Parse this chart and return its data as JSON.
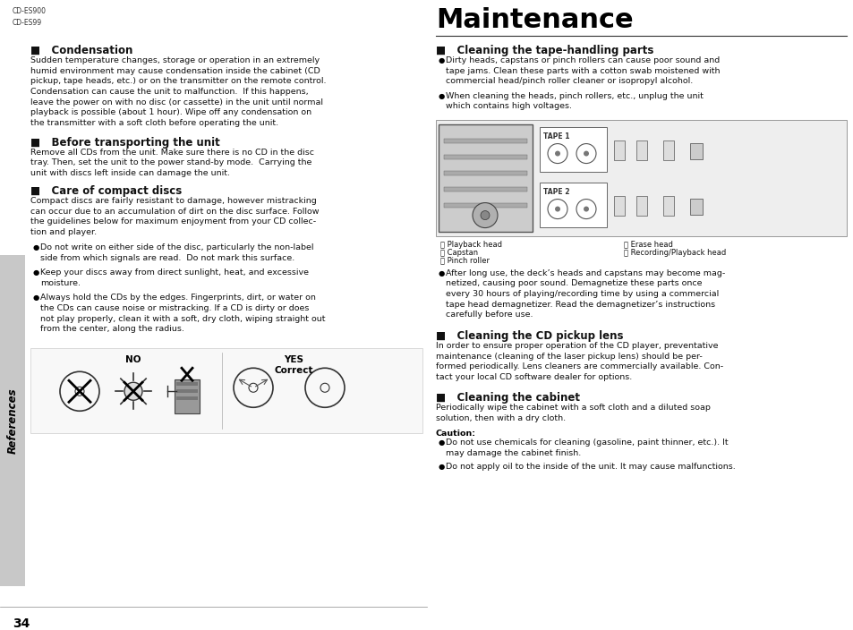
{
  "bg_color": "#ffffff",
  "model_text": "CD-ES900\nCD-ES99",
  "title": "Maintenance",
  "page_num": "34",
  "left_tab_text": "References",
  "cond_heading": "■   Condensation",
  "cond_body": "Sudden temperature changes, storage or operation in an extremely\nhumid environment may cause condensation inside the cabinet (CD\npickup, tape heads, etc.) or on the transmitter on the remote control.\nCondensation can cause the unit to malfunction.  If this happens,\nleave the power on with no disc (or cassette) in the unit until normal\nplayback is possible (about 1 hour). Wipe off any condensation on\nthe transmitter with a soft cloth before operating the unit.",
  "before_heading": "■   Before transporting the unit",
  "before_body": "Remove all CDs from the unit. Make sure there is no CD in the disc\ntray. Then, set the unit to the power stand-by mode.  Carrying the\nunit with discs left inside can damage the unit.",
  "care_heading": "■   Care of compact discs",
  "care_body": "Compact discs are fairly resistant to damage, however mistracking\ncan occur due to an accumulation of dirt on the disc surface. Follow\nthe guidelines below for maximum enjoyment from your CD collec-\ntion and player.",
  "care_bullets": [
    "Do not write on either side of the disc, particularly the non-label\nside from which signals are read.  Do not mark this surface.",
    "Keep your discs away from direct sunlight, heat, and excessive\nmoisture.",
    "Always hold the CDs by the edges. Fingerprints, dirt, or water on\nthe CDs can cause noise or mistracking. If a CD is dirty or does\nnot play properly, clean it with a soft, dry cloth, wiping straight out\nfrom the center, along the radius."
  ],
  "no_label": "NO",
  "yes_label": "YES\nCorrect",
  "tape_heading": "■   Cleaning the tape-handling parts",
  "tape_bullets": [
    "Dirty heads, capstans or pinch rollers can cause poor sound and\ntape jams. Clean these parts with a cotton swab moistened with\ncommercial head/pinch roller cleaner or isopropyl alcohol.",
    "When cleaning the heads, pinch rollers, etc., unplug the unit\nwhich contains high voltages."
  ],
  "diag_left_labels": [
    "Â  Playback head",
    "Ã  Capstan",
    "Ä  Pinch roller"
  ],
  "diag_right_labels": [
    "Ó  Erase head",
    "Ô  Recording/Playback head"
  ],
  "tape_para": "After long use, the deck’s heads and capstans may become mag-\nnetized, causing poor sound. Demagnetize these parts once\nevery 30 hours of playing/recording time by using a commercial\ntape head demagnetizer. Read the demagnetizer’s instructions\ncarefully before use.",
  "cdlens_heading": "■   Cleaning the CD pickup lens",
  "cdlens_body": "In order to ensure proper operation of the CD player, preventative\nmaintenance (cleaning of the laser pickup lens) should be per-\nformed periodically. Lens cleaners are commercially available. Con-\ntact your local CD software dealer for options.",
  "cabinet_heading": "■   Cleaning the cabinet",
  "cabinet_body": "Periodically wipe the cabinet with a soft cloth and a diluted soap\nsolution, then with a dry cloth.",
  "caution_heading": "Caution:",
  "caution_bullets": [
    "Do not use chemicals for cleaning (gasoline, paint thinner, etc.). It\nmay damage the cabinet finish.",
    "Do not apply oil to the inside of the unit. It may cause malfunctions."
  ],
  "diag_labels_left": [
    "Ⓐ Playback head",
    "Ⓑ Capstan",
    "Ⓒ Pinch roller"
  ],
  "diag_labels_right": [
    "ⓓ Erase head",
    "ⓔ Recording/Playback head"
  ]
}
